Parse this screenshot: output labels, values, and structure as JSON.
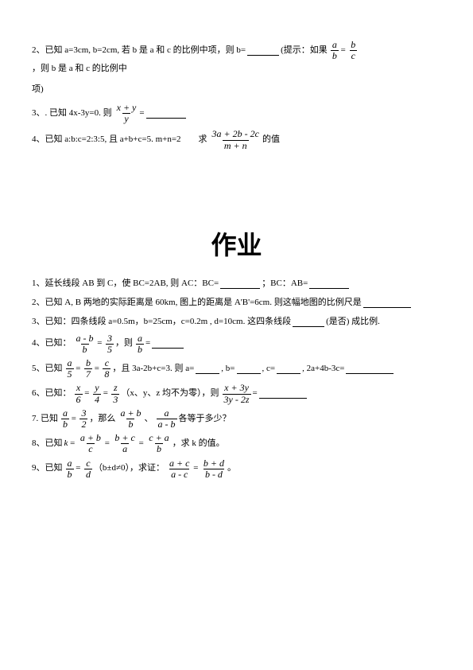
{
  "top": {
    "p2_a": "2、已知 a=3cm, b=2cm, 若 b 是 a 和 c 的比例中项，则 b=",
    "p2_b": "(提示：如果",
    "p2_c": "，则 b 是 a 和 c 的比例中",
    "p2_d": "项)",
    "p3_a": "3、. 已知 4x-3y=0. 则",
    "p3_b": " = ",
    "p4_a": "4、已知 a:b:c=2:3:5, 且 a+b+c=5. m+n=2　　求",
    "p4_b": "的值",
    "f1": {
      "n": "a",
      "d": "b"
    },
    "f2": {
      "n": "b",
      "d": "c"
    },
    "f3": {
      "n": "x + y",
      "d": "y"
    },
    "f4": {
      "n": "3a + 2b - 2c",
      "d": "m + n"
    }
  },
  "title": "作业",
  "hw": {
    "p1_a": "1、延长线段 AB 到 C，使 BC=2AB, 则 AC：BC=",
    "p1_b": "；BC：AB=",
    "p2_a": "2、已知 A, B 两地的实际距离是 60km, 图上的距离是 A'B'=6cm. 则这幅地图的比例尺是 ",
    "p3_a": "3、已知：四条线段 a=0.5m，b=25cm，c=0.2m , d=10cm. 这四条线段",
    "p3_b": "(是否) 成比例.",
    "p4_a": "4、已知：",
    "p4_b": "，则",
    "p4_c": "=",
    "p5_a": "5、已知",
    "p5_b": "，且 3a-2b+c=3. 则 a=",
    "p5_c": ", b=",
    "p5_d": ", c=",
    "p5_e": ", 2a+4b-3c= ",
    "p6_a": "6、已知：",
    "p6_b": "（x、y、z 均不为零），则",
    "p6_c": " = ",
    "p7_a": "7. 已知",
    "p7_b": "，那么",
    "p7_c": "、",
    "p7_d": "各等于多少？",
    "p8_a": "8、已知",
    "p8_b": " k ",
    "p8_c": "，求 k 的值。",
    "p9_a": "9、已知",
    "p9_b": "（b±d≠0），求证：",
    "p9_c": "。",
    "f_ab_b": {
      "n": "a - b",
      "d": "b"
    },
    "f_3_5": {
      "n": "3",
      "d": "5"
    },
    "f_a_b": {
      "n": "a",
      "d": "b"
    },
    "f_a_5": {
      "n": "a",
      "d": "5"
    },
    "f_b_7": {
      "n": "b",
      "d": "7"
    },
    "f_c_8": {
      "n": "c",
      "d": "8"
    },
    "f_x_6": {
      "n": "x",
      "d": "6"
    },
    "f_y_4": {
      "n": "y",
      "d": "4"
    },
    "f_z_3": {
      "n": "z",
      "d": "3"
    },
    "f_x3y": {
      "n": "x + 3y",
      "d": "3y - 2z"
    },
    "f_3_2": {
      "n": "3",
      "d": "2"
    },
    "f_apb_b": {
      "n": "a + b",
      "d": "b"
    },
    "f_a_amb": {
      "n": "a",
      "d": "a - b"
    },
    "f_apb_c": {
      "n": "a + b",
      "d": "c"
    },
    "f_bpc_a": {
      "n": "b + c",
      "d": "a"
    },
    "f_cpa_b": {
      "n": "c + a",
      "d": "b"
    },
    "f_c_d": {
      "n": "c",
      "d": "d"
    },
    "f_apc_amc": {
      "n": "a + c",
      "d": "a - c"
    },
    "f_bpd_bmd": {
      "n": "b + d",
      "d": "b - d"
    }
  }
}
